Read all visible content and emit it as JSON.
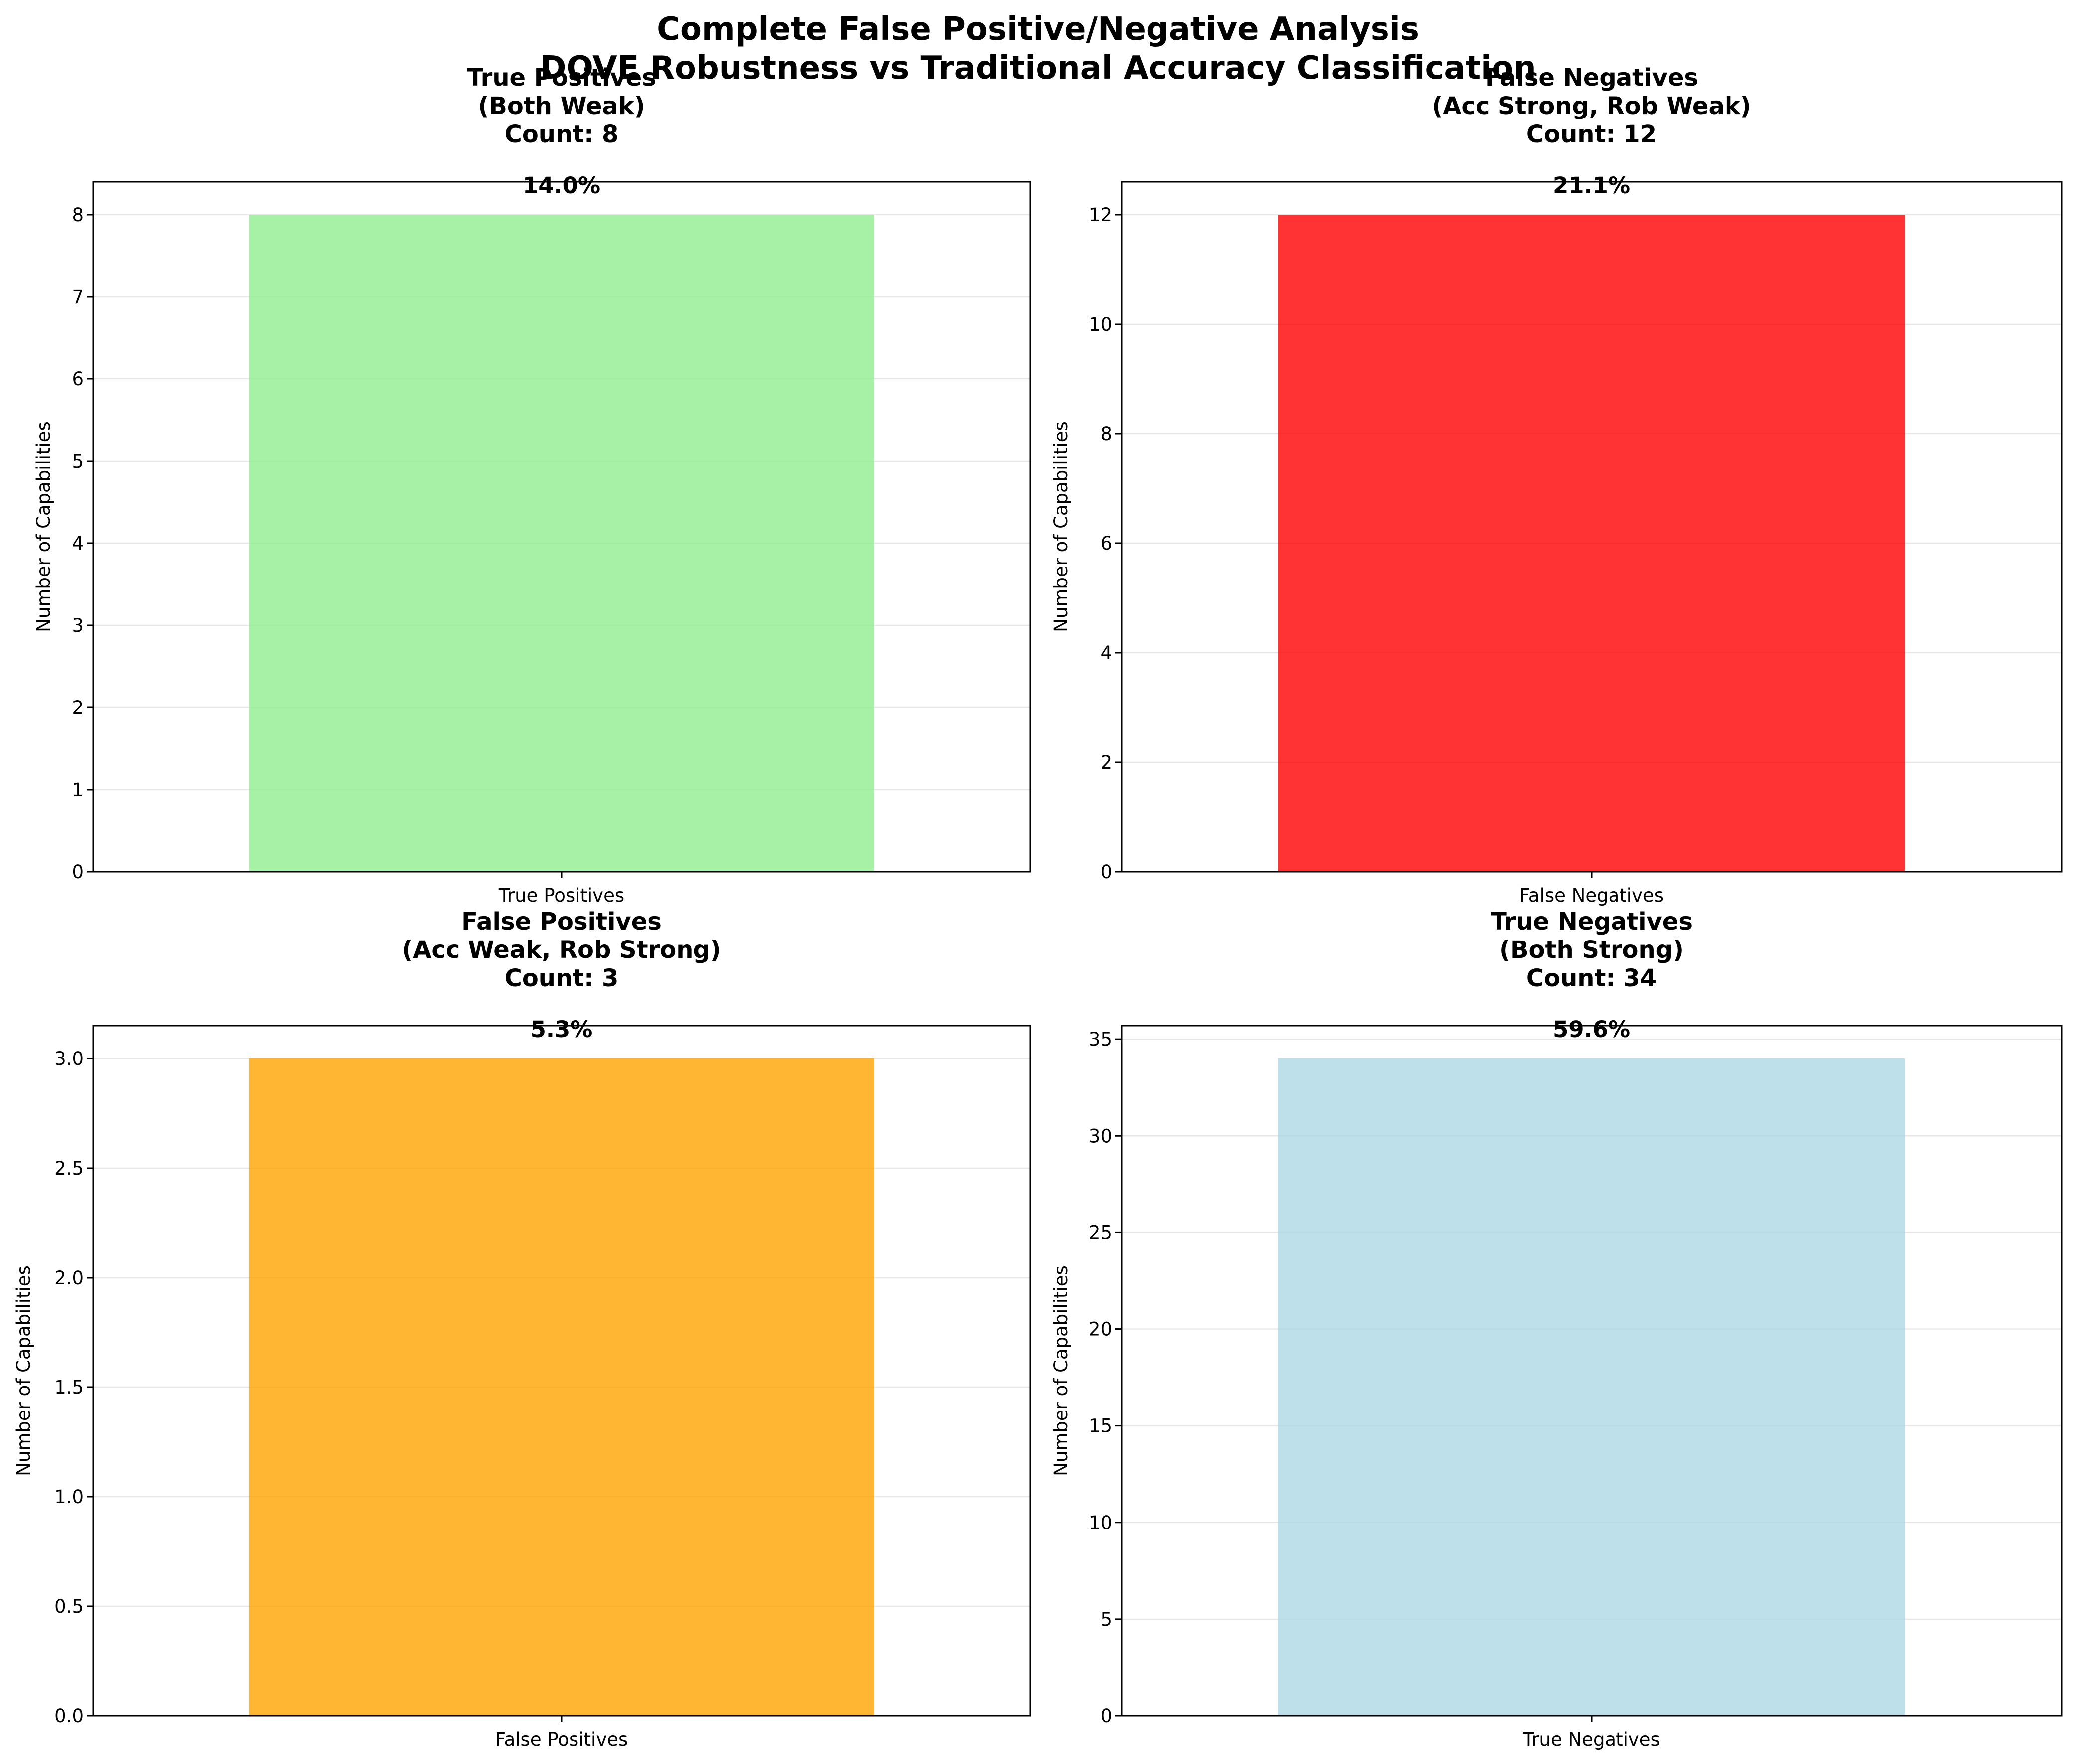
{
  "figure": {
    "title_line1": "Complete False Positive/Negative Analysis",
    "title_line2": "DOVE Robustness vs Traditional Accuracy Classification"
  },
  "chart_data": [
    {
      "type": "bar",
      "title_lines": [
        "True Positives",
        "(Both Weak)",
        "Count: 8"
      ],
      "categories": [
        "True Positives"
      ],
      "values": [
        8
      ],
      "data_label": "14.0%",
      "ylabel": "Number of Capabilities",
      "ylim": [
        0,
        8.4
      ],
      "yticks": [
        0,
        1,
        2,
        3,
        4,
        5,
        6,
        7,
        8
      ],
      "ytick_labels": [
        "0",
        "1",
        "2",
        "3",
        "4",
        "5",
        "6",
        "7",
        "8"
      ],
      "color": "#90ee90",
      "grid": "y"
    },
    {
      "type": "bar",
      "title_lines": [
        "False Negatives",
        "(Acc Strong, Rob Weak)",
        "Count: 12"
      ],
      "categories": [
        "False Negatives"
      ],
      "values": [
        12
      ],
      "data_label": "21.1%",
      "ylabel": "Number of Capabilities",
      "ylim": [
        0,
        12.6
      ],
      "yticks": [
        0,
        2,
        4,
        6,
        8,
        10,
        12
      ],
      "ytick_labels": [
        "0",
        "2",
        "4",
        "6",
        "8",
        "10",
        "12"
      ],
      "color": "#ff0000",
      "grid": "y"
    },
    {
      "type": "bar",
      "title_lines": [
        "False Positives",
        "(Acc Weak, Rob Strong)",
        "Count: 3"
      ],
      "categories": [
        "False Positives"
      ],
      "values": [
        3
      ],
      "data_label": "5.3%",
      "ylabel": "Number of Capabilities",
      "ylim": [
        0,
        3.15
      ],
      "yticks": [
        0,
        0.5,
        1.0,
        1.5,
        2.0,
        2.5,
        3.0
      ],
      "ytick_labels": [
        "0.0",
        "0.5",
        "1.0",
        "1.5",
        "2.0",
        "2.5",
        "3.0"
      ],
      "color": "#ffa500",
      "grid": "y"
    },
    {
      "type": "bar",
      "title_lines": [
        "True Negatives",
        "(Both Strong)",
        "Count: 34"
      ],
      "categories": [
        "True Negatives"
      ],
      "values": [
        34
      ],
      "data_label": "59.6%",
      "ylabel": "Number of Capabilities",
      "ylim": [
        0,
        35.7
      ],
      "yticks": [
        0,
        5,
        10,
        15,
        20,
        25,
        30,
        35
      ],
      "ytick_labels": [
        "0",
        "5",
        "10",
        "15",
        "20",
        "25",
        "30",
        "35"
      ],
      "color": "#add8e6",
      "grid": "y"
    }
  ]
}
